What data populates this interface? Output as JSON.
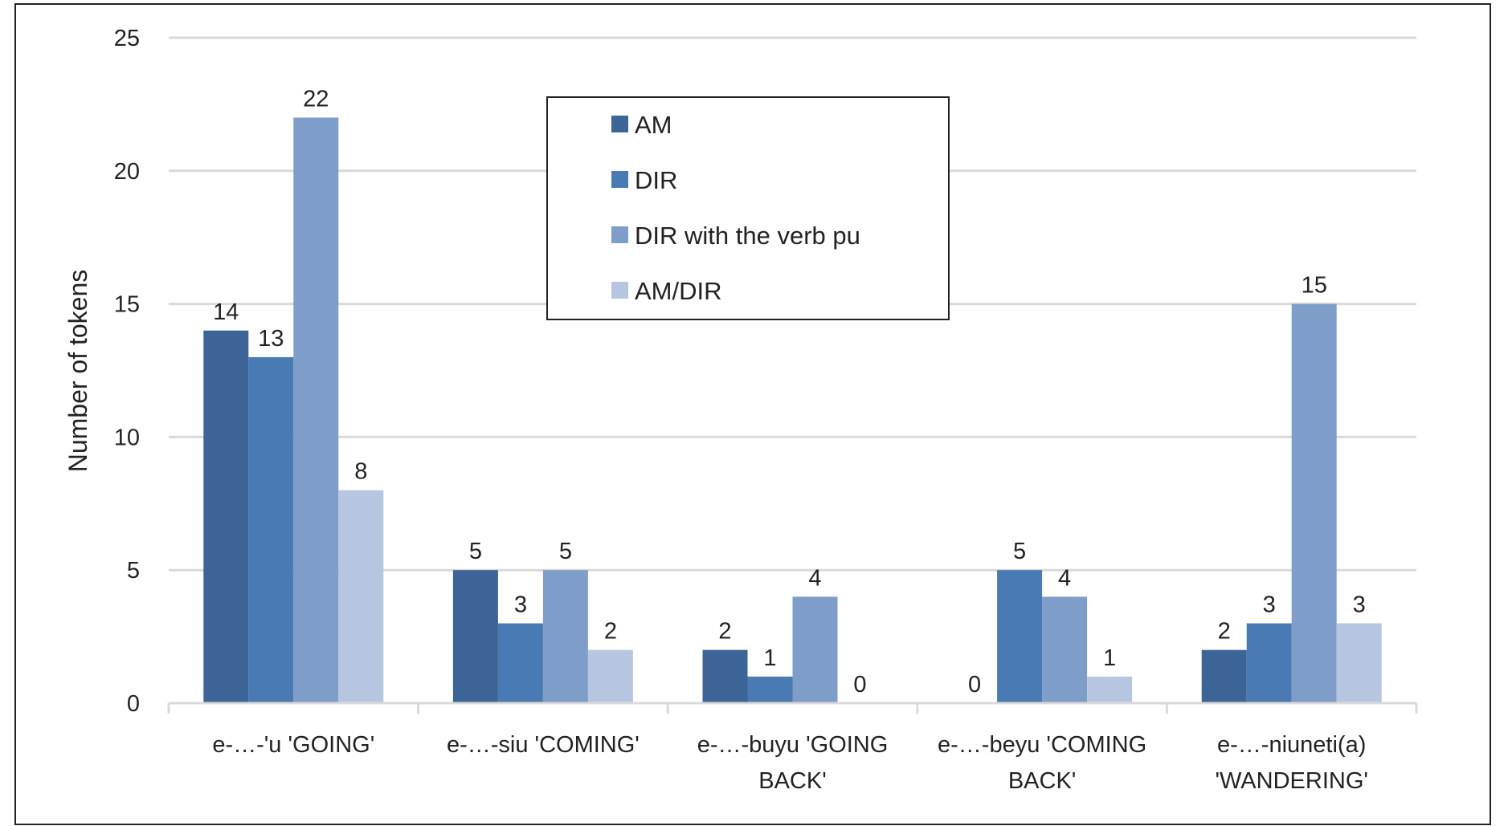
{
  "chart_data": {
    "type": "bar",
    "title": "",
    "xlabel": "",
    "ylabel": "Number of tokens",
    "ylim": [
      0,
      25
    ],
    "yticks": [
      "0",
      "5",
      "10",
      "15",
      "20",
      "25"
    ],
    "grid": true,
    "legend_position": "top-center",
    "categories": [
      [
        "e-…-'u 'GOING'"
      ],
      [
        "e-…-siu 'COMING'"
      ],
      [
        "e-…-buyu 'GOING",
        "BACK'"
      ],
      [
        "e-…-beyu 'COMING",
        "BACK'"
      ],
      [
        "e-…-niuneti(a)",
        "'WANDERING'"
      ]
    ],
    "series": [
      {
        "name": "AM",
        "color": "#3c6496",
        "values": [
          14,
          5,
          2,
          0,
          2
        ]
      },
      {
        "name": "DIR",
        "color": "#4a7ab4",
        "values": [
          13,
          3,
          1,
          5,
          3
        ]
      },
      {
        "name": "DIR with the verb pu",
        "color": "#7f9dc9",
        "values": [
          22,
          5,
          4,
          4,
          15
        ]
      },
      {
        "name": "AM/DIR",
        "color": "#b7c6e0",
        "values": [
          8,
          2,
          0,
          1,
          3
        ]
      }
    ]
  }
}
